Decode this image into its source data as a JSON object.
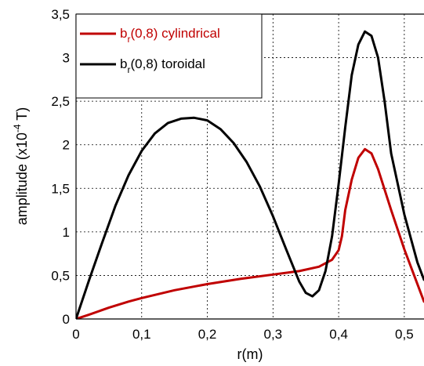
{
  "chart_data": {
    "type": "line",
    "xlabel": "r(m)",
    "ylabel": {
      "main": "amplitude (x10",
      "sup": "-4",
      "tail": " T)"
    },
    "xlim": [
      0,
      0.53
    ],
    "ylim": [
      0,
      3.5
    ],
    "x_ticks": [
      {
        "value": 0,
        "label": "0"
      },
      {
        "value": 0.1,
        "label": "0,1"
      },
      {
        "value": 0.2,
        "label": "0,2"
      },
      {
        "value": 0.3,
        "label": "0,3"
      },
      {
        "value": 0.4,
        "label": "0,4"
      },
      {
        "value": 0.5,
        "label": "0,5"
      }
    ],
    "y_ticks": [
      {
        "value": 0,
        "label": "0"
      },
      {
        "value": 0.5,
        "label": "0,5"
      },
      {
        "value": 1,
        "label": "1"
      },
      {
        "value": 1.5,
        "label": "1,5"
      },
      {
        "value": 2,
        "label": "2"
      },
      {
        "value": 2.5,
        "label": "2,5"
      },
      {
        "value": 3,
        "label": "3"
      },
      {
        "value": 3.5,
        "label": "3,5"
      }
    ],
    "grid": true,
    "legend_position": "top-left",
    "series": [
      {
        "name": {
          "base": "b",
          "sub": "r",
          "rest": "(0,8) cylindrical"
        },
        "color": "#c00000",
        "points": [
          [
            0,
            0
          ],
          [
            0.02,
            0.05
          ],
          [
            0.05,
            0.13
          ],
          [
            0.08,
            0.2
          ],
          [
            0.1,
            0.24
          ],
          [
            0.15,
            0.33
          ],
          [
            0.2,
            0.4
          ],
          [
            0.25,
            0.46
          ],
          [
            0.3,
            0.51
          ],
          [
            0.34,
            0.55
          ],
          [
            0.37,
            0.6
          ],
          [
            0.39,
            0.68
          ],
          [
            0.4,
            0.79
          ],
          [
            0.405,
            0.95
          ],
          [
            0.41,
            1.25
          ],
          [
            0.42,
            1.6
          ],
          [
            0.43,
            1.85
          ],
          [
            0.44,
            1.95
          ],
          [
            0.45,
            1.9
          ],
          [
            0.46,
            1.72
          ],
          [
            0.48,
            1.25
          ],
          [
            0.5,
            0.8
          ],
          [
            0.53,
            0.2
          ]
        ]
      },
      {
        "name": {
          "base": "b",
          "sub": "r",
          "rest": "(0,8) toroidal"
        },
        "color": "#000000",
        "points": [
          [
            0,
            0
          ],
          [
            0.02,
            0.45
          ],
          [
            0.04,
            0.88
          ],
          [
            0.06,
            1.3
          ],
          [
            0.08,
            1.65
          ],
          [
            0.1,
            1.93
          ],
          [
            0.12,
            2.13
          ],
          [
            0.14,
            2.25
          ],
          [
            0.16,
            2.3
          ],
          [
            0.18,
            2.31
          ],
          [
            0.2,
            2.28
          ],
          [
            0.22,
            2.18
          ],
          [
            0.24,
            2.02
          ],
          [
            0.26,
            1.8
          ],
          [
            0.28,
            1.52
          ],
          [
            0.3,
            1.18
          ],
          [
            0.32,
            0.8
          ],
          [
            0.34,
            0.43
          ],
          [
            0.35,
            0.3
          ],
          [
            0.36,
            0.26
          ],
          [
            0.37,
            0.33
          ],
          [
            0.38,
            0.55
          ],
          [
            0.39,
            0.95
          ],
          [
            0.4,
            1.55
          ],
          [
            0.41,
            2.2
          ],
          [
            0.42,
            2.8
          ],
          [
            0.43,
            3.15
          ],
          [
            0.44,
            3.3
          ],
          [
            0.45,
            3.25
          ],
          [
            0.46,
            3.0
          ],
          [
            0.47,
            2.5
          ],
          [
            0.48,
            1.9
          ],
          [
            0.5,
            1.2
          ],
          [
            0.52,
            0.65
          ],
          [
            0.53,
            0.45
          ]
        ]
      }
    ]
  }
}
